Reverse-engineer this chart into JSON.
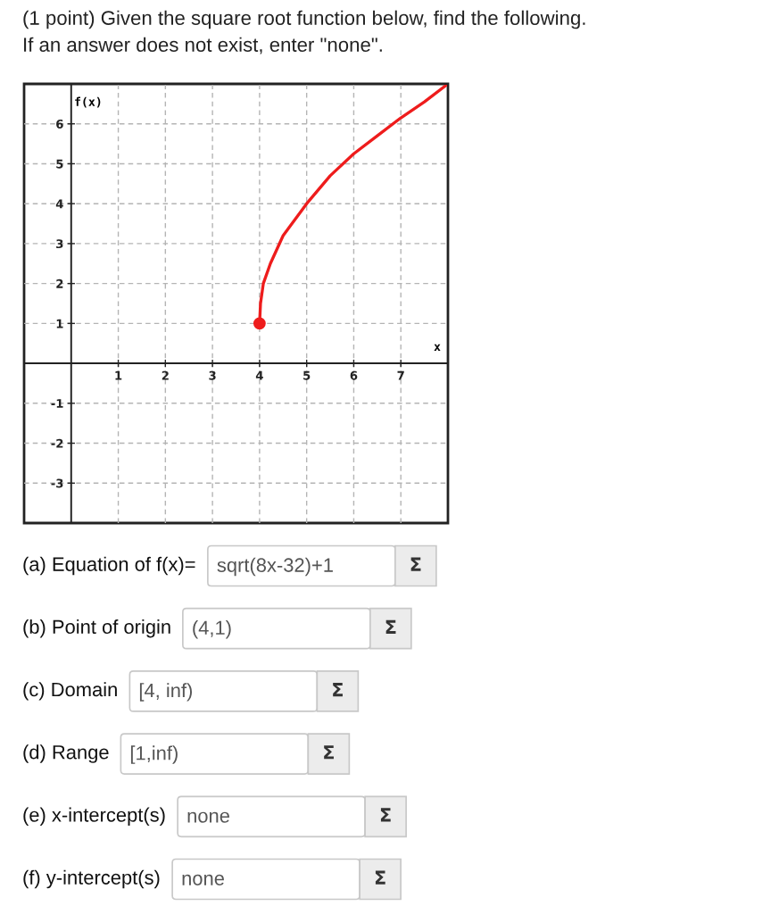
{
  "chart_data": {
    "type": "line",
    "title": "(1 point) Given the square root function below, find the following.",
    "subtitle": "If an answer does not exist, enter \"none\".",
    "xlabel": "x",
    "ylabel": "f(x)",
    "xlim": [
      -1,
      8
    ],
    "ylim": [
      -4,
      7
    ],
    "xticks": [
      1,
      2,
      3,
      4,
      5,
      6,
      7
    ],
    "yticks": [
      -3,
      -2,
      -1,
      1,
      2,
      3,
      4,
      5,
      6
    ],
    "grid": true,
    "series": [
      {
        "color": "#ee1c1c",
        "x": [
          4,
          4.02,
          4.08,
          4.23,
          4.5,
          5,
          5.5,
          6,
          6.5,
          7,
          7.5,
          8
        ],
        "values": [
          1,
          1.5,
          2,
          2.5,
          3.2,
          4,
          4.7,
          5.25,
          5.7,
          6.15,
          6.55,
          7
        ],
        "marker": "none",
        "line_style": "solid"
      },
      {
        "type": "scatter",
        "color": "#ee1c1c",
        "x": [
          4
        ],
        "values": [
          1
        ],
        "marker": "circle"
      }
    ],
    "annotations": [
      "(a) Equation of f(x)=",
      "sqrt(8x-32)+1",
      "Σ",
      "(b) Point of origin",
      "(4,1)",
      "Σ",
      "(c) Domain",
      "[4, inf)",
      "Σ",
      "(d) Range",
      "[1,inf)",
      "Σ",
      "(e) x-intercept(s)",
      "none",
      "Σ",
      "(f) y-intercept(s)",
      "none",
      "Σ"
    ]
  }
}
